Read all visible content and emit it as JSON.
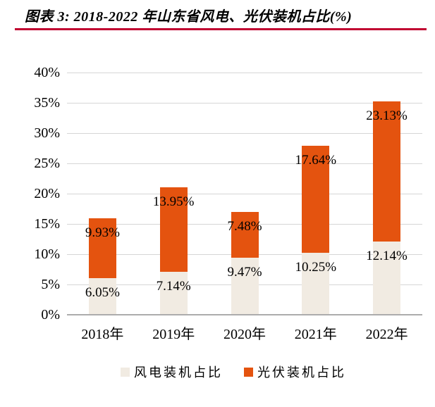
{
  "header": {
    "title": "图表 3: 2018-2022 年山东省风电、光伏装机占比(%)"
  },
  "colors": {
    "accent_rule": "#C00030",
    "wind_fill": "#F1EBE2",
    "solar_fill": "#E4530F",
    "gridline": "#D6D6D6",
    "axis_line": "#ACACAC",
    "text": "#000000"
  },
  "chart_data": {
    "type": "bar",
    "stacked": true,
    "title": "图表 3: 2018-2022 年山东省风电、光伏装机占比(%)",
    "categories": [
      "2018年",
      "2019年",
      "2020年",
      "2021年",
      "2022年"
    ],
    "series": [
      {
        "name": "风电装机占比",
        "color": "#F1EBE2",
        "values": [
          6.05,
          7.14,
          9.47,
          10.25,
          12.14
        ],
        "labels": [
          "6.05%",
          "7.14%",
          "9.47%",
          "10.25%",
          "12.14%"
        ]
      },
      {
        "name": "光伏装机占比",
        "color": "#E4530F",
        "values": [
          9.93,
          13.95,
          7.48,
          17.64,
          23.13
        ],
        "labels": [
          "9.93%",
          "13.95%",
          "7.48%",
          "17.64%",
          "23.13%"
        ]
      }
    ],
    "y_axis": {
      "min": 0,
      "max": 40,
      "step": 5,
      "tick_labels": [
        "40%",
        "35%",
        "30%",
        "25%",
        "20%",
        "15%",
        "10%",
        "5%",
        "0%"
      ]
    },
    "grid": true,
    "legend_position": "bottom"
  }
}
